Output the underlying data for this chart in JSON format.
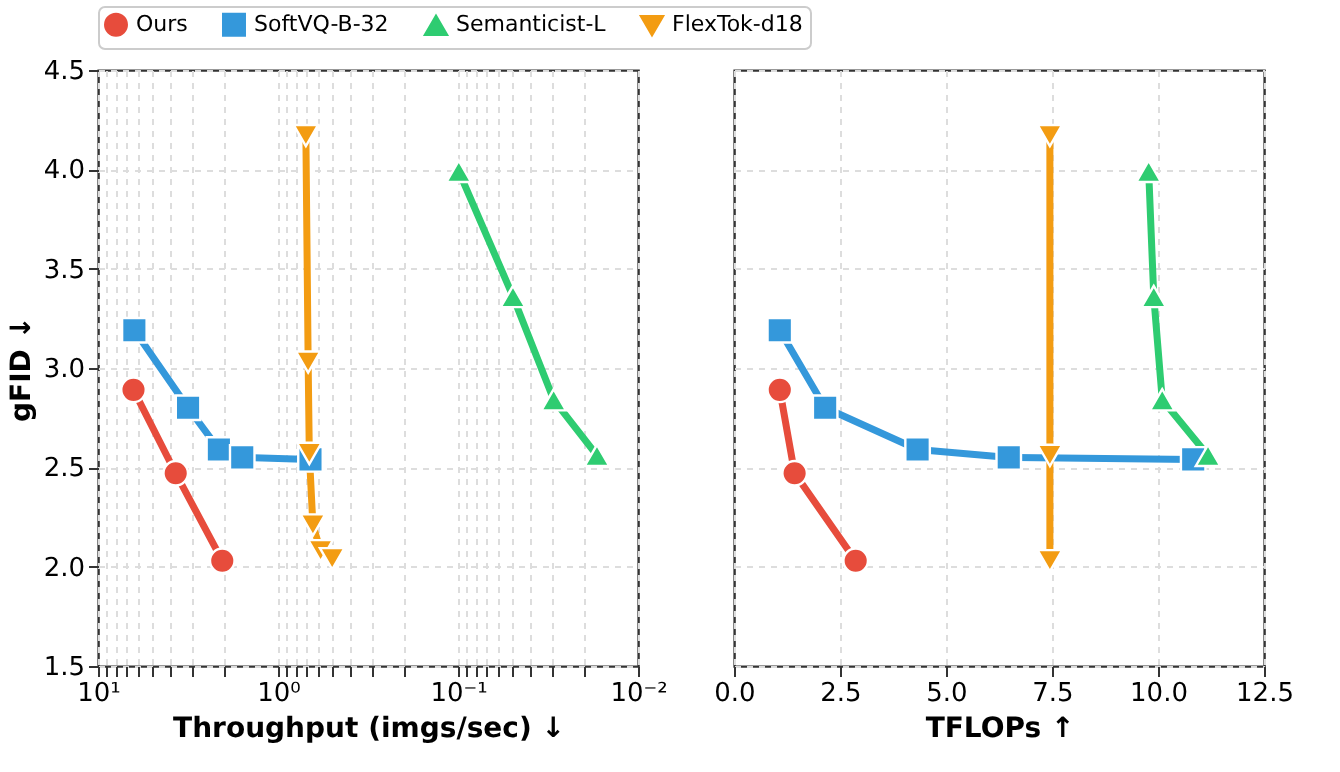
{
  "chart_data": [
    {
      "type": "line",
      "xlabel": "Throughput (imgs/sec) ↓",
      "ylabel": "gFID ↓",
      "log": "x",
      "grid": true,
      "legend": "top",
      "line_style": "solid",
      "xlim": [
        10,
        0.01
      ],
      "ylim": [
        1.5,
        4.5
      ],
      "xticks": [
        {
          "value": 10,
          "label": "10¹"
        },
        {
          "value": 9,
          "label": null
        },
        {
          "value": 8,
          "label": null
        },
        {
          "value": 7,
          "label": null
        },
        {
          "value": 6,
          "label": null
        },
        {
          "value": 5,
          "label": null
        },
        {
          "value": 4,
          "label": null
        },
        {
          "value": 3,
          "label": null
        },
        {
          "value": 2,
          "label": null
        },
        {
          "value": 1,
          "label": "10⁰"
        },
        {
          "value": 0.9,
          "label": null
        },
        {
          "value": 0.8,
          "label": null
        },
        {
          "value": 0.7,
          "label": null
        },
        {
          "value": 0.6,
          "label": null
        },
        {
          "value": 0.5,
          "label": null
        },
        {
          "value": 0.4,
          "label": null
        },
        {
          "value": 0.3,
          "label": null
        },
        {
          "value": 0.2,
          "label": null
        },
        {
          "value": 0.1,
          "label": "10⁻¹"
        },
        {
          "value": 0.09,
          "label": null
        },
        {
          "value": 0.08,
          "label": null
        },
        {
          "value": 0.07,
          "label": null
        },
        {
          "value": 0.06,
          "label": null
        },
        {
          "value": 0.05,
          "label": null
        },
        {
          "value": 0.04,
          "label": null
        },
        {
          "value": 0.03,
          "label": null
        },
        {
          "value": 0.02,
          "label": null
        },
        {
          "value": 0.01,
          "label": "10⁻²"
        }
      ],
      "yticks": [
        1.5,
        {
          "value": 2,
          "label": "2.0"
        },
        2.5,
        {
          "value": 3,
          "label": "3.0"
        },
        3.5,
        {
          "value": 4,
          "label": "4.0"
        },
        4.5
      ],
      "series": [
        {
          "name": "Ours",
          "color": "#e74c3c",
          "marker": "circle",
          "x": [
            6.35,
            3.7,
            2.04
          ],
          "values": [
            2.89,
            2.47,
            2.03
          ]
        },
        {
          "name": "SoftVQ-B-32",
          "color": "#3498db",
          "marker": "square",
          "x": [
            6.28,
            3.16,
            2.13,
            1.58,
            0.66
          ],
          "values": [
            3.19,
            2.8,
            2.59,
            2.55,
            2.54
          ]
        },
        {
          "name": "Semanticist-L",
          "color": "#2ecc71",
          "marker": "triangle",
          "x": [
            0.099,
            0.0495,
            0.0294,
            0.0169
          ],
          "values": [
            3.99,
            3.36,
            2.84,
            2.56
          ]
        },
        {
          "name": "FlexTok-d18",
          "color": "#f39c12",
          "marker": "triangle-down",
          "x": [
            0.7,
            0.68,
            0.67,
            0.64,
            0.58,
            0.5
          ],
          "values": [
            4.17,
            3.03,
            2.57,
            2.21,
            2.08,
            2.04
          ]
        }
      ]
    },
    {
      "type": "line",
      "xlabel": "TFLOPs ↑",
      "grid": true,
      "legend": "top",
      "line_style": "solid",
      "tick_labels": "x",
      "xlim": [
        0,
        12.5
      ],
      "ylim": [
        1.5,
        4.5
      ],
      "xticks": [
        {
          "value": 0,
          "label": "0.0"
        },
        2.5,
        {
          "value": 5,
          "label": "5.0"
        },
        7.5,
        {
          "value": 10,
          "label": "10.0"
        },
        12.5
      ],
      "yticks": [
        1.5,
        2,
        2.5,
        3,
        3.5,
        4,
        4.5
      ],
      "series": [
        {
          "name": "Ours",
          "color": "#e74c3c",
          "marker": "circle",
          "x": [
            1.08,
            1.43,
            2.87
          ],
          "values": [
            2.89,
            2.47,
            2.03
          ]
        },
        {
          "name": "SoftVQ-B-32",
          "color": "#3498db",
          "marker": "square",
          "x": [
            1.08,
            2.15,
            4.33,
            6.48,
            10.83
          ],
          "values": [
            3.19,
            2.8,
            2.59,
            2.55,
            2.54
          ]
        },
        {
          "name": "Semanticist-L",
          "color": "#2ecc71",
          "marker": "triangle",
          "x": [
            9.78,
            9.9,
            10.1,
            11.18
          ],
          "values": [
            3.99,
            3.36,
            2.84,
            2.56
          ]
        },
        {
          "name": "FlexTok-d18",
          "color": "#f39c12",
          "marker": "triangle-down",
          "x": [
            7.45,
            7.45,
            7.45
          ],
          "values": [
            4.17,
            2.56,
            2.03
          ]
        }
      ]
    }
  ]
}
